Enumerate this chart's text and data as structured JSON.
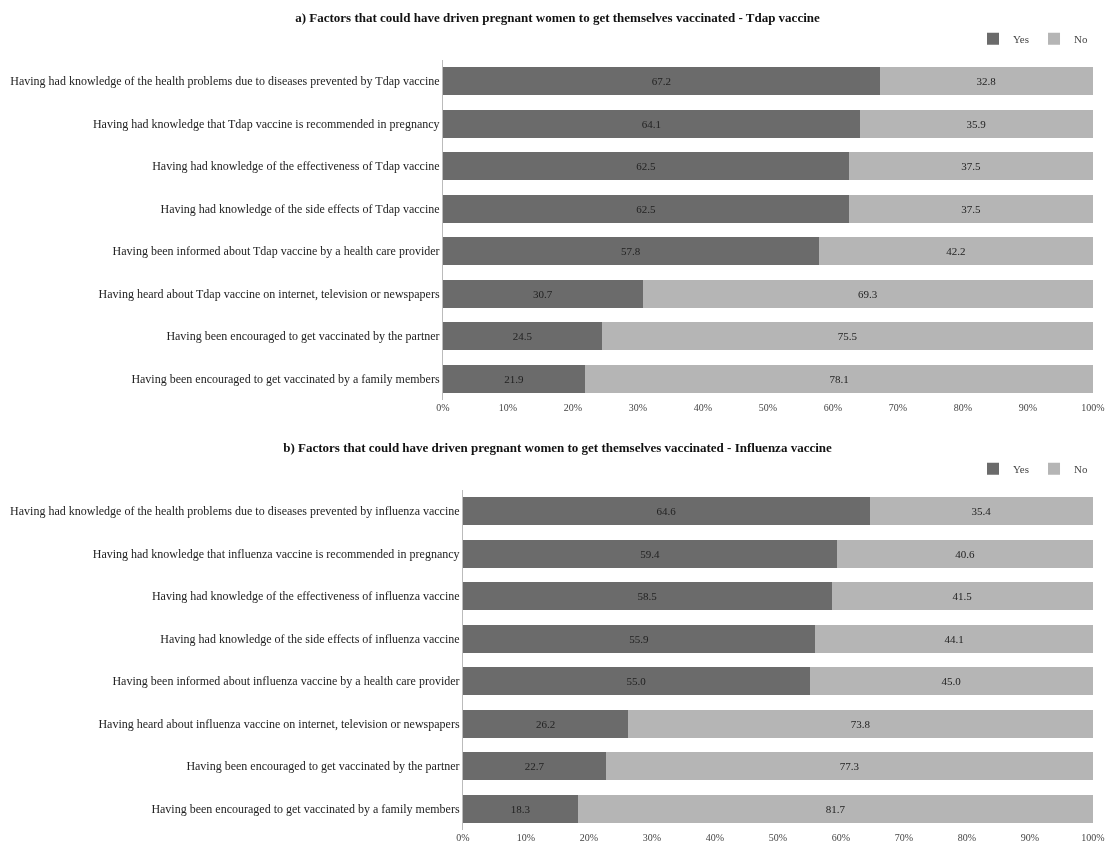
{
  "chart_data": [
    {
      "type": "bar",
      "orientation": "horizontal",
      "stacked": true,
      "title": "a) Factors that could have driven pregnant women to get themselves vaccinated - Tdap vaccine",
      "categories": [
        "Having had knowledge of the health problems due to diseases prevented by Tdap vaccine",
        "Having had knowledge that Tdap vaccine is recommended in pregnancy",
        "Having had knowledge of the effectiveness of Tdap vaccine",
        "Having had knowledge of the side effects of Tdap vaccine",
        "Having been informed about Tdap vaccine by a health care provider",
        "Having heard about Tdap vaccine on internet, television or newspapers",
        "Having been encouraged to get vaccinated by the partner",
        "Having been encouraged to get vaccinated by a family members"
      ],
      "series": [
        {
          "name": "Yes",
          "color": "#6b6b6b",
          "values": [
            67.2,
            64.1,
            62.5,
            62.5,
            57.8,
            30.7,
            24.5,
            21.9
          ]
        },
        {
          "name": "No",
          "color": "#b5b5b5",
          "values": [
            32.8,
            35.9,
            37.5,
            37.5,
            42.2,
            69.3,
            75.5,
            78.1
          ]
        }
      ],
      "xlim": [
        0,
        100
      ],
      "xticks": [
        {
          "value": 0,
          "label": "0%"
        },
        {
          "value": 10,
          "label": "10%"
        },
        {
          "value": 20,
          "label": "20%"
        },
        {
          "value": 30,
          "label": "30%"
        },
        {
          "value": 40,
          "label": "40%"
        },
        {
          "value": 50,
          "label": "50%"
        },
        {
          "value": 60,
          "label": "60%"
        },
        {
          "value": 70,
          "label": "70%"
        },
        {
          "value": 80,
          "label": "80%"
        },
        {
          "value": 90,
          "label": "90%"
        },
        {
          "value": 100,
          "label": "100%"
        }
      ],
      "data_labels": true,
      "grid": false,
      "legend": "top right"
    },
    {
      "type": "bar",
      "orientation": "horizontal",
      "stacked": true,
      "title": "b) Factors that could have driven pregnant women to get themselves vaccinated - Influenza vaccine",
      "categories": [
        "Having had knowledge of the health problems due to diseases prevented by influenza vaccine",
        "Having had knowledge that influenza vaccine is recommended in pregnancy",
        "Having had knowledge of the effectiveness of influenza vaccine",
        "Having had knowledge of the side effects of influenza vaccine",
        "Having been informed about influenza vaccine by a health care provider",
        "Having heard about influenza vaccine on internet, television or newspapers",
        "Having been encouraged to get vaccinated by the partner",
        "Having been encouraged to get vaccinated by a family members"
      ],
      "series": [
        {
          "name": "Yes",
          "color": "#6b6b6b",
          "values": [
            64.6,
            59.4,
            58.5,
            55.9,
            55.0,
            26.2,
            22.7,
            18.3
          ],
          "value_labels": [
            "64.6",
            "59.4",
            "58.5",
            "55.9",
            "55.0",
            "26.2",
            "22.7",
            "18.3"
          ]
        },
        {
          "name": "No",
          "color": "#b5b5b5",
          "values": [
            35.4,
            40.6,
            41.5,
            44.1,
            45.0,
            73.8,
            77.3,
            81.7
          ],
          "value_labels": [
            "35.4",
            "40.6",
            "41.5",
            "44.1",
            "45.0",
            "73.8",
            "77.3",
            "81.7"
          ]
        }
      ],
      "xlim": [
        0,
        100
      ],
      "xticks": [
        {
          "value": 0,
          "label": "0%"
        },
        {
          "value": 10,
          "label": "10%"
        },
        {
          "value": 20,
          "label": "20%"
        },
        {
          "value": 30,
          "label": "30%"
        },
        {
          "value": 40,
          "label": "40%"
        },
        {
          "value": 50,
          "label": "50%"
        },
        {
          "value": 60,
          "label": "60%"
        },
        {
          "value": 70,
          "label": "70%"
        },
        {
          "value": 80,
          "label": "80%"
        },
        {
          "value": 90,
          "label": "90%"
        },
        {
          "value": 100,
          "label": "100%"
        }
      ],
      "grid": false,
      "legend": "top right"
    }
  ]
}
